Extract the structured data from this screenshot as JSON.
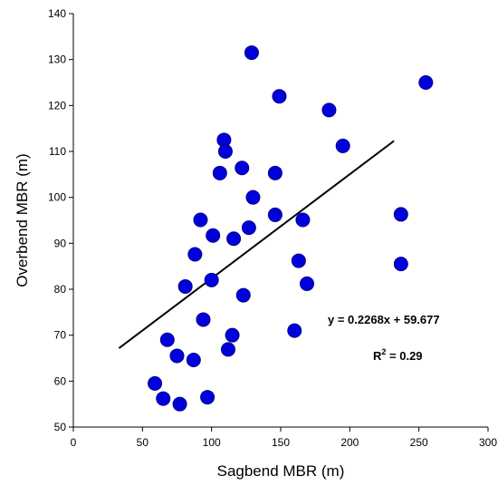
{
  "chart_data": {
    "type": "scatter",
    "title": "",
    "xlabel": "Sagbend MBR (m)",
    "ylabel": "Overbend MBR (m)",
    "xlim": [
      0,
      300
    ],
    "ylim": [
      50,
      140
    ],
    "xticks": [
      0,
      50,
      100,
      150,
      200,
      250,
      300
    ],
    "yticks": [
      50,
      60,
      70,
      80,
      90,
      100,
      110,
      120,
      130,
      140
    ],
    "grid": false,
    "legend": "none",
    "marker_color": "#0000dd",
    "marker_edge_color": "#00008b",
    "trendline_color": "#000000",
    "series": [
      {
        "points": [
          [
            59,
            59.5
          ],
          [
            65,
            56.2
          ],
          [
            68,
            69.0
          ],
          [
            75,
            65.5
          ],
          [
            77,
            55.0
          ],
          [
            81,
            80.6
          ],
          [
            87,
            64.6
          ],
          [
            88,
            87.6
          ],
          [
            92,
            95.1
          ],
          [
            94,
            73.4
          ],
          [
            97,
            56.5
          ],
          [
            100,
            82.0
          ],
          [
            101,
            91.7
          ],
          [
            106,
            105.3
          ],
          [
            109,
            112.5
          ],
          [
            110,
            110.0
          ],
          [
            112,
            66.9
          ],
          [
            115,
            70.0
          ],
          [
            116,
            91.0
          ],
          [
            122,
            106.4
          ],
          [
            123,
            78.7
          ],
          [
            127,
            93.4
          ],
          [
            129,
            131.5
          ],
          [
            130,
            100.0
          ],
          [
            146,
            105.3
          ],
          [
            146,
            96.2
          ],
          [
            149,
            122.0
          ],
          [
            160,
            71.0
          ],
          [
            163,
            86.2
          ],
          [
            166,
            95.1
          ],
          [
            169,
            81.2
          ],
          [
            185,
            119.0
          ],
          [
            195,
            111.2
          ],
          [
            237,
            96.3
          ],
          [
            237,
            85.5
          ],
          [
            255,
            125.0
          ]
        ]
      }
    ],
    "trendline": {
      "slope": 0.2268,
      "intercept": 59.677,
      "x_range": [
        33,
        232
      ]
    },
    "annotations": {
      "equation": "y = 0.2268x + 59.677",
      "r2_prefix": "R",
      "r2_sup": "2",
      "r2_value": " = 0.29"
    }
  }
}
